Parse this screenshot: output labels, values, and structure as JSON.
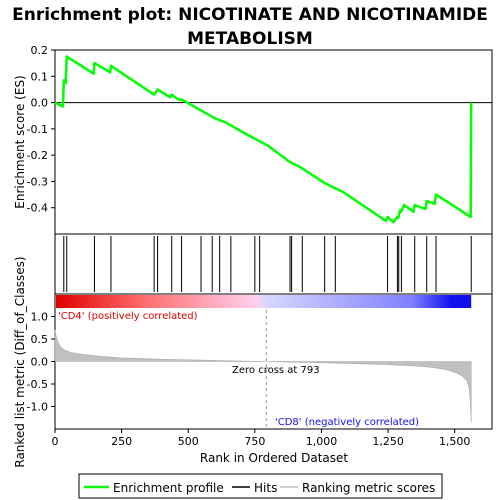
{
  "chart_data": {
    "type": "line",
    "title_line1": "Enrichment plot: NICOTINATE AND NICOTINAMIDE",
    "title_line2": "METABOLISM",
    "top_panel": {
      "ylabel": "Enrichment score (ES)",
      "ylim": [
        -0.5,
        0.2
      ],
      "yticks": [
        0.2,
        0.1,
        0.0,
        -0.1,
        -0.2,
        -0.3,
        -0.4
      ],
      "ytick_labels": [
        "0.2",
        "0.1",
        "0.0",
        "-0.1",
        "-0.2",
        "-0.3",
        "-0.4"
      ],
      "grid": false,
      "series": [
        {
          "name": "Enrichment profile",
          "color": "#00ff00",
          "x": [
            0,
            30,
            33,
            40,
            44,
            145,
            148,
            207,
            210,
            372,
            385,
            432,
            438,
            465,
            475,
            600,
            640,
            700,
            800,
            880,
            920,
            1010,
            1040,
            1080,
            1242,
            1248,
            1270,
            1285,
            1288,
            1295,
            1300,
            1310,
            1345,
            1350,
            1390,
            1395,
            1425,
            1430,
            1560,
            1562
          ],
          "y": [
            0.0,
            -0.015,
            0.085,
            0.075,
            0.175,
            0.11,
            0.15,
            0.115,
            0.14,
            0.03,
            0.05,
            0.02,
            0.03,
            0.01,
            0.012,
            -0.06,
            -0.075,
            -0.11,
            -0.165,
            -0.225,
            -0.245,
            -0.305,
            -0.32,
            -0.34,
            -0.45,
            -0.435,
            -0.455,
            -0.435,
            -0.44,
            -0.41,
            -0.415,
            -0.39,
            -0.415,
            -0.39,
            -0.405,
            -0.375,
            -0.385,
            -0.35,
            -0.435,
            0.0
          ]
        }
      ]
    },
    "hits_panel": {
      "name": "Hits",
      "color": "#000000",
      "positions": [
        33,
        44,
        148,
        210,
        372,
        385,
        438,
        475,
        548,
        590,
        618,
        660,
        750,
        768,
        882,
        888,
        928,
        1012,
        1052,
        1248,
        1285,
        1290,
        1300,
        1350,
        1395,
        1430,
        1562
      ]
    },
    "heat_strip": {
      "positive_label": "'CD4' (positively correlated)",
      "negative_label": "'CD8' (negatively correlated)",
      "positive_color": "#e00000",
      "negative_color": "#1010ee",
      "crossing_rank": 793
    },
    "bottom_panel": {
      "ylabel": "Ranked list metric (Diff_of_Classes)",
      "xlabel": "Rank in Ordered Dataset",
      "ylim": [
        -1.5,
        1.5
      ],
      "yticks": [
        1.0,
        0.5,
        0.0,
        -0.5,
        -1.0
      ],
      "ytick_labels": [
        "1.0",
        "0.5",
        "0.0",
        "-0.5",
        "-1.0"
      ],
      "xlim": [
        0,
        1640
      ],
      "xticks": [
        0,
        250,
        500,
        750,
        1000,
        1250,
        1500
      ],
      "xtick_labels": [
        "0",
        "250",
        "500",
        "750",
        "1,000",
        "1,250",
        "1,500"
      ],
      "zero_cross_label": "Zero cross at 793",
      "series": [
        {
          "name": "Ranking metric scores",
          "color": "#c0c0c0",
          "x": [
            0,
            3,
            8,
            15,
            25,
            40,
            60,
            90,
            130,
            180,
            250,
            350,
            450,
            550,
            650,
            750,
            793,
            850,
            950,
            1050,
            1150,
            1250,
            1300,
            1350,
            1400,
            1450,
            1480,
            1510,
            1530,
            1545,
            1553,
            1558,
            1562
          ],
          "y": [
            0.7,
            0.6,
            0.48,
            0.38,
            0.3,
            0.24,
            0.2,
            0.17,
            0.14,
            0.11,
            0.08,
            0.06,
            0.045,
            0.03,
            0.015,
            0.004,
            0.0,
            -0.008,
            -0.02,
            -0.035,
            -0.05,
            -0.07,
            -0.085,
            -0.1,
            -0.12,
            -0.16,
            -0.2,
            -0.26,
            -0.33,
            -0.42,
            -0.55,
            -0.8,
            -1.35
          ]
        }
      ]
    },
    "legend": {
      "items": [
        {
          "label": "Enrichment profile",
          "color": "#00ff00"
        },
        {
          "label": "Hits",
          "color": "#000000"
        },
        {
          "label": "Ranking metric scores",
          "color": "#c0c0c0"
        }
      ]
    }
  }
}
